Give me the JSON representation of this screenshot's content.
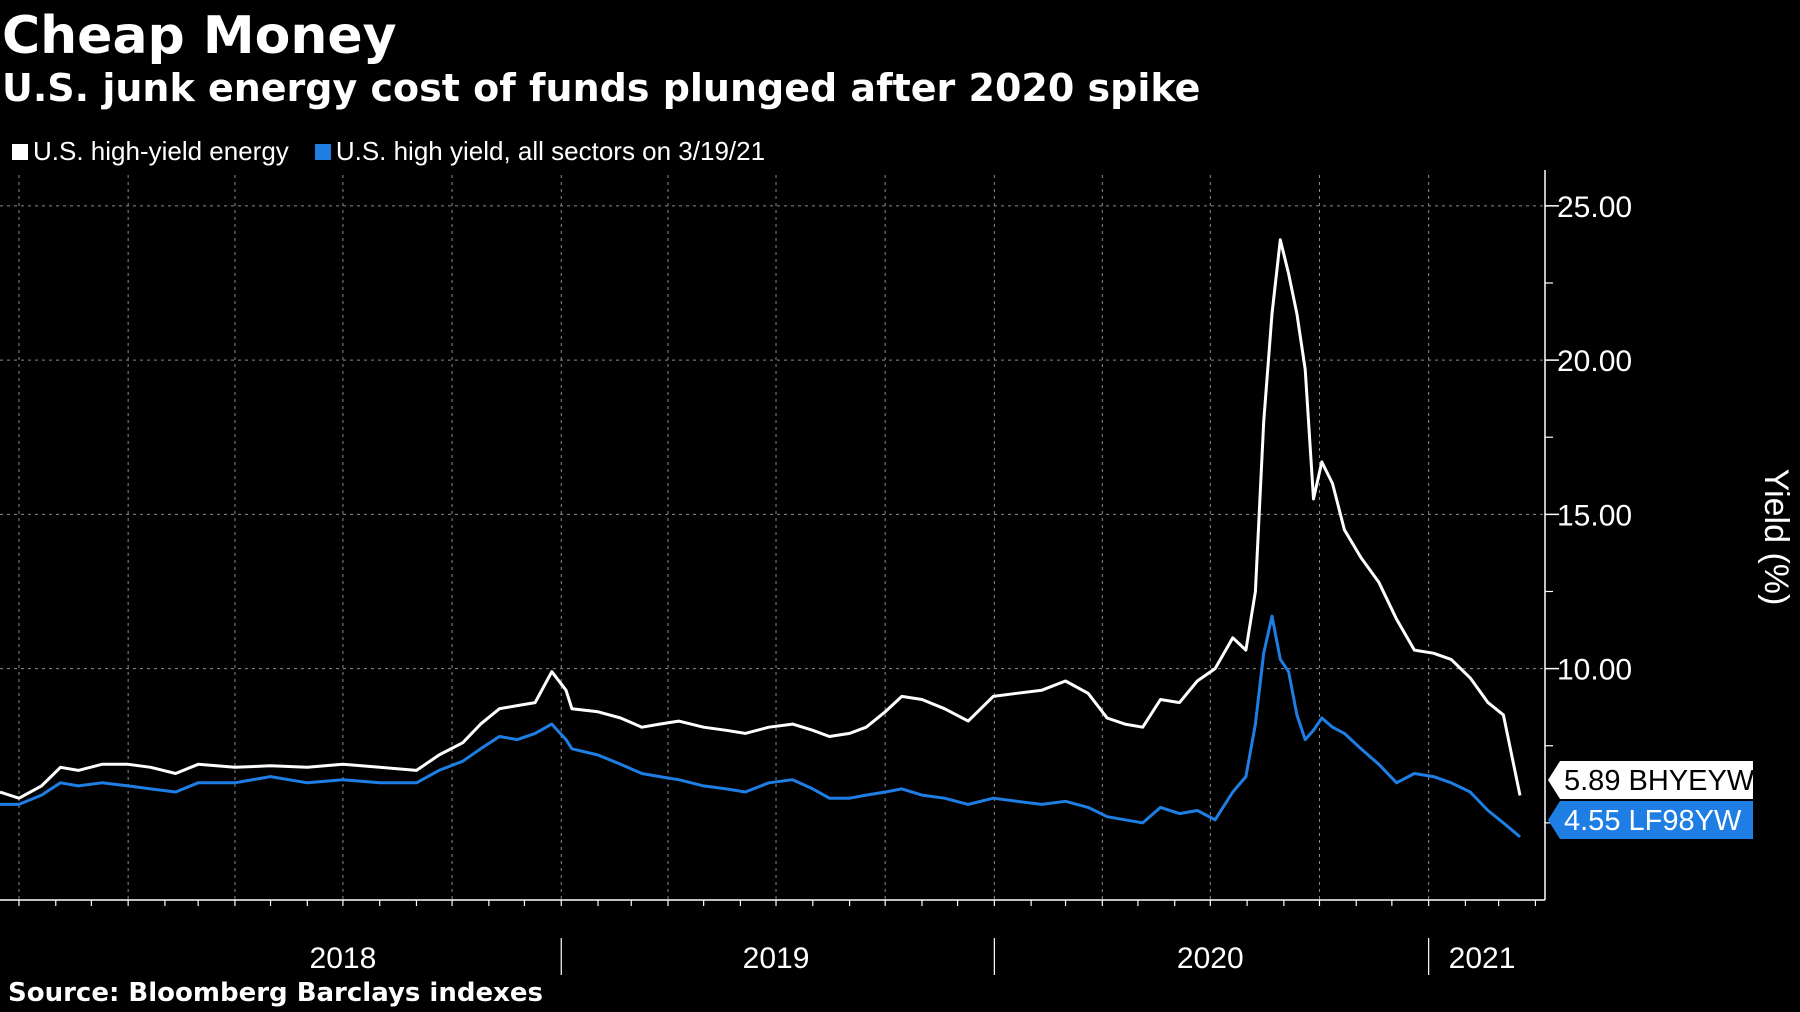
{
  "header": {
    "title": "Cheap Money",
    "subtitle": "U.S. junk energy cost of funds plunged after 2020 spike"
  },
  "footer": {
    "source": "Source: Bloomberg Barclays indexes"
  },
  "colors": {
    "background": "#000000",
    "energy": "#ffffff",
    "all_sectors": "#1e7ee4",
    "grid": "#7a7a7a"
  },
  "chart_data": {
    "type": "line",
    "title": "Cheap Money",
    "subtitle": "U.S. junk energy cost of funds plunged after 2020 spike",
    "ylabel": "Yield (%)",
    "xlabel": "",
    "x_range": [
      "2017-09-15",
      "2021-03-19"
    ],
    "ylim": [
      2.5,
      26
    ],
    "yticks": [
      10,
      15,
      20,
      25
    ],
    "ytick_labels": [
      "10.00",
      "15.00",
      "20.00",
      "25.00"
    ],
    "x_year_labels": [
      {
        "label": "2018",
        "date": "2018-07-01"
      },
      {
        "label": "2019",
        "date": "2019-07-01"
      },
      {
        "label": "2020",
        "date": "2020-07-01"
      },
      {
        "label": "2021",
        "date": "2021-02-15"
      }
    ],
    "year_boundaries": [
      "2019-01-01",
      "2020-01-01",
      "2021-01-01"
    ],
    "grid": true,
    "legend_position": "top-left",
    "last_value_tags": [
      {
        "text": "5.89 BHYEYW",
        "value": 5.89,
        "series": 0
      },
      {
        "text": "4.55 LF98YW",
        "value": 4.55,
        "series": 1
      }
    ],
    "series": [
      {
        "name": "U.S. high-yield energy",
        "color": "#ffffff",
        "points": [
          [
            "2017-09-15",
            6.0
          ],
          [
            "2017-10-01",
            5.8
          ],
          [
            "2017-10-20",
            6.2
          ],
          [
            "2017-11-05",
            6.8
          ],
          [
            "2017-11-20",
            6.7
          ],
          [
            "2017-12-10",
            6.9
          ],
          [
            "2018-01-01",
            6.9
          ],
          [
            "2018-01-20",
            6.8
          ],
          [
            "2018-02-10",
            6.6
          ],
          [
            "2018-03-01",
            6.9
          ],
          [
            "2018-04-01",
            6.8
          ],
          [
            "2018-05-01",
            6.85
          ],
          [
            "2018-06-01",
            6.8
          ],
          [
            "2018-07-01",
            6.9
          ],
          [
            "2018-08-01",
            6.8
          ],
          [
            "2018-09-01",
            6.7
          ],
          [
            "2018-09-20",
            7.2
          ],
          [
            "2018-10-10",
            7.6
          ],
          [
            "2018-10-25",
            8.2
          ],
          [
            "2018-11-10",
            8.7
          ],
          [
            "2018-11-25",
            8.8
          ],
          [
            "2018-12-10",
            8.9
          ],
          [
            "2018-12-24",
            9.9
          ],
          [
            "2019-01-05",
            9.3
          ],
          [
            "2019-01-10",
            8.7
          ],
          [
            "2019-02-01",
            8.6
          ],
          [
            "2019-02-20",
            8.4
          ],
          [
            "2019-03-10",
            8.1
          ],
          [
            "2019-03-25",
            8.2
          ],
          [
            "2019-04-10",
            8.3
          ],
          [
            "2019-05-01",
            8.1
          ],
          [
            "2019-05-20",
            8.0
          ],
          [
            "2019-06-05",
            7.9
          ],
          [
            "2019-06-25",
            8.1
          ],
          [
            "2019-07-15",
            8.2
          ],
          [
            "2019-08-01",
            8.0
          ],
          [
            "2019-08-15",
            7.8
          ],
          [
            "2019-09-01",
            7.9
          ],
          [
            "2019-09-15",
            8.1
          ],
          [
            "2019-10-01",
            8.6
          ],
          [
            "2019-10-15",
            9.1
          ],
          [
            "2019-11-01",
            9.0
          ],
          [
            "2019-11-20",
            8.7
          ],
          [
            "2019-12-10",
            8.3
          ],
          [
            "2019-12-31",
            9.1
          ],
          [
            "2020-01-20",
            9.2
          ],
          [
            "2020-02-10",
            9.3
          ],
          [
            "2020-03-01",
            9.6
          ],
          [
            "2020-03-20",
            9.2
          ],
          [
            "2020-04-05",
            8.4
          ],
          [
            "2020-04-20",
            8.2
          ],
          [
            "2020-05-05",
            8.1
          ],
          [
            "2020-05-20",
            9.0
          ],
          [
            "2020-06-05",
            8.9
          ],
          [
            "2020-06-20",
            9.6
          ],
          [
            "2020-07-05",
            10.0
          ],
          [
            "2020-07-20",
            11.0
          ],
          [
            "2020-07-31",
            10.6
          ],
          [
            "2020-08-08",
            12.5
          ],
          [
            "2020-08-15",
            18.0
          ],
          [
            "2020-08-22",
            21.5
          ],
          [
            "2020-08-29",
            23.9
          ],
          [
            "2020-09-05",
            22.8
          ],
          [
            "2020-09-12",
            21.5
          ],
          [
            "2020-09-19",
            19.7
          ],
          [
            "2020-09-26",
            15.5
          ],
          [
            "2020-10-03",
            16.7
          ],
          [
            "2020-10-12",
            16.0
          ],
          [
            "2020-10-22",
            14.5
          ],
          [
            "2020-11-05",
            13.6
          ],
          [
            "2020-11-20",
            12.8
          ],
          [
            "2020-12-05",
            11.6
          ],
          [
            "2020-12-20",
            10.6
          ],
          [
            "2021-01-05",
            10.5
          ],
          [
            "2021-01-20",
            10.3
          ],
          [
            "2021-02-05",
            9.7
          ],
          [
            "2021-02-20",
            8.9
          ],
          [
            "2021-03-05",
            8.5
          ],
          [
            "2021-03-19",
            5.89
          ]
        ]
      },
      {
        "name": "U.S. high yield, all sectors on 3/19/21",
        "color": "#1e7ee4",
        "points": [
          [
            "2017-09-15",
            5.6
          ],
          [
            "2017-10-01",
            5.6
          ],
          [
            "2017-10-20",
            5.9
          ],
          [
            "2017-11-05",
            6.3
          ],
          [
            "2017-11-20",
            6.2
          ],
          [
            "2017-12-10",
            6.3
          ],
          [
            "2018-01-01",
            6.2
          ],
          [
            "2018-01-20",
            6.1
          ],
          [
            "2018-02-10",
            6.0
          ],
          [
            "2018-03-01",
            6.3
          ],
          [
            "2018-04-01",
            6.3
          ],
          [
            "2018-05-01",
            6.5
          ],
          [
            "2018-06-01",
            6.3
          ],
          [
            "2018-07-01",
            6.4
          ],
          [
            "2018-08-01",
            6.3
          ],
          [
            "2018-09-01",
            6.3
          ],
          [
            "2018-09-20",
            6.7
          ],
          [
            "2018-10-10",
            7.0
          ],
          [
            "2018-10-25",
            7.4
          ],
          [
            "2018-11-10",
            7.8
          ],
          [
            "2018-11-25",
            7.7
          ],
          [
            "2018-12-10",
            7.9
          ],
          [
            "2018-12-24",
            8.2
          ],
          [
            "2019-01-05",
            7.7
          ],
          [
            "2019-01-10",
            7.4
          ],
          [
            "2019-02-01",
            7.2
          ],
          [
            "2019-02-20",
            6.9
          ],
          [
            "2019-03-10",
            6.6
          ],
          [
            "2019-03-25",
            6.5
          ],
          [
            "2019-04-10",
            6.4
          ],
          [
            "2019-05-01",
            6.2
          ],
          [
            "2019-05-20",
            6.1
          ],
          [
            "2019-06-05",
            6.0
          ],
          [
            "2019-06-25",
            6.3
          ],
          [
            "2019-07-15",
            6.4
          ],
          [
            "2019-08-01",
            6.1
          ],
          [
            "2019-08-15",
            5.8
          ],
          [
            "2019-09-01",
            5.8
          ],
          [
            "2019-09-15",
            5.9
          ],
          [
            "2019-10-01",
            6.0
          ],
          [
            "2019-10-15",
            6.1
          ],
          [
            "2019-11-01",
            5.9
          ],
          [
            "2019-11-20",
            5.8
          ],
          [
            "2019-12-10",
            5.6
          ],
          [
            "2019-12-31",
            5.8
          ],
          [
            "2020-01-20",
            5.7
          ],
          [
            "2020-02-10",
            5.6
          ],
          [
            "2020-03-01",
            5.7
          ],
          [
            "2020-03-20",
            5.5
          ],
          [
            "2020-04-05",
            5.2
          ],
          [
            "2020-04-20",
            5.1
          ],
          [
            "2020-05-05",
            5.0
          ],
          [
            "2020-05-20",
            5.5
          ],
          [
            "2020-06-05",
            5.3
          ],
          [
            "2020-06-20",
            5.4
          ],
          [
            "2020-07-05",
            5.1
          ],
          [
            "2020-07-20",
            6.0
          ],
          [
            "2020-07-31",
            6.5
          ],
          [
            "2020-08-08",
            8.2
          ],
          [
            "2020-08-15",
            10.5
          ],
          [
            "2020-08-22",
            11.7
          ],
          [
            "2020-08-29",
            10.3
          ],
          [
            "2020-09-05",
            9.9
          ],
          [
            "2020-09-12",
            8.5
          ],
          [
            "2020-09-19",
            7.7
          ],
          [
            "2020-09-26",
            8.0
          ],
          [
            "2020-10-03",
            8.4
          ],
          [
            "2020-10-12",
            8.1
          ],
          [
            "2020-10-22",
            7.9
          ],
          [
            "2020-11-05",
            7.4
          ],
          [
            "2020-11-20",
            6.9
          ],
          [
            "2020-12-05",
            6.3
          ],
          [
            "2020-12-20",
            6.6
          ],
          [
            "2021-01-05",
            6.5
          ],
          [
            "2021-01-20",
            6.3
          ],
          [
            "2021-02-05",
            6.0
          ],
          [
            "2021-02-20",
            5.4
          ],
          [
            "2021-03-05",
            5.0
          ],
          [
            "2021-03-19",
            4.55
          ]
        ]
      }
    ]
  }
}
